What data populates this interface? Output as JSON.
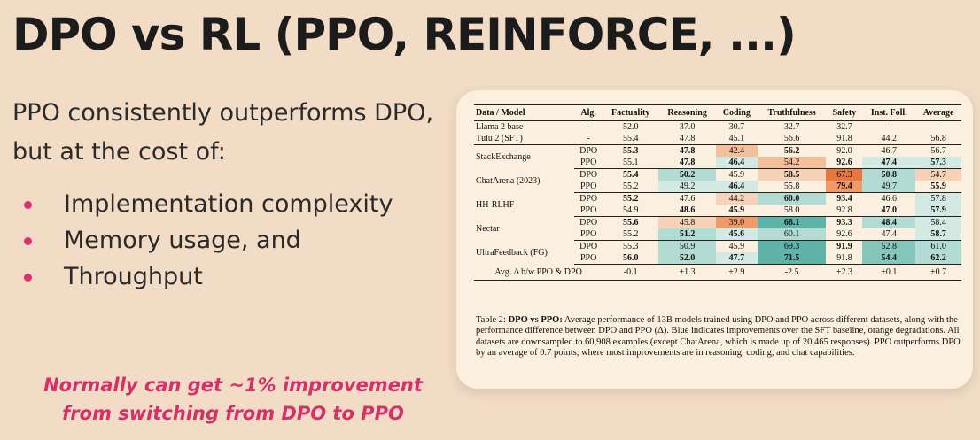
{
  "slide": {
    "title": "DPO vs RL (PPO, REINFORCE, ...)",
    "subtitle": "PPO consistently outperforms DPO, but at the cost of:",
    "bullets": [
      "Implementation complexity",
      "Memory usage, and",
      "Throughput"
    ],
    "callout": "Normally can get ~1% improvement from switching from DPO to PPO",
    "colors": {
      "background": "#f3dcc5",
      "accent": "#d2316a",
      "card": "#fbf0df",
      "blue": "#5fb3a9",
      "orange": "#ee8a55"
    }
  },
  "table": {
    "headers": [
      "Data / Model",
      "Alg.",
      "Factuality",
      "Reasoning",
      "Coding",
      "Truthfulness",
      "Safety",
      "Inst. Foll.",
      "Average"
    ],
    "baselines": [
      {
        "model": "Llama 2 base",
        "alg": "-",
        "values": [
          "52.0",
          "37.0",
          "30.7",
          "32.7",
          "32.7",
          "-",
          "-"
        ]
      },
      {
        "model": "Tülu 2 (SFT)",
        "alg": "-",
        "values": [
          "55.4",
          "47.8",
          "45.1",
          "56.6",
          "91.8",
          "44.2",
          "56.8"
        ]
      }
    ],
    "groups": [
      {
        "model": "StackExchange",
        "rows": [
          {
            "alg": "DPO",
            "values": [
              "55.3",
              "47.8",
              "42.4",
              "56.2",
              "92.0",
              "46.7",
              "56.7"
            ],
            "bold": [
              true,
              true,
              false,
              true,
              false,
              false,
              false
            ],
            "shade": [
              "",
              "",
              "o2",
              "",
              "",
              "",
              ""
            ]
          },
          {
            "alg": "PPO",
            "values": [
              "55.1",
              "47.8",
              "46.4",
              "54.2",
              "92.6",
              "47.4",
              "57.3"
            ],
            "bold": [
              false,
              true,
              true,
              false,
              true,
              true,
              true
            ],
            "shade": [
              "",
              "",
              "b1",
              "o2",
              "",
              "b1",
              "b1"
            ]
          }
        ]
      },
      {
        "model": "ChatArena (2023)",
        "rows": [
          {
            "alg": "DPO",
            "values": [
              "55.4",
              "50.2",
              "45.9",
              "58.5",
              "67.3",
              "50.8",
              "54.7"
            ],
            "bold": [
              true,
              true,
              false,
              true,
              false,
              true,
              false
            ],
            "shade": [
              "",
              "b2",
              "",
              "o1",
              "o4",
              "b2",
              "o1"
            ]
          },
          {
            "alg": "PPO",
            "values": [
              "55.2",
              "49.2",
              "46.4",
              "55.8",
              "79.4",
              "49.7",
              "55.9"
            ],
            "bold": [
              false,
              false,
              true,
              false,
              true,
              false,
              true
            ],
            "shade": [
              "",
              "b1",
              "b1",
              "",
              "o3",
              "b2",
              ""
            ]
          }
        ]
      },
      {
        "model": "HH-RLHF",
        "rows": [
          {
            "alg": "DPO",
            "values": [
              "55.2",
              "47.6",
              "44.2",
              "60.0",
              "93.4",
              "46.6",
              "57.8"
            ],
            "bold": [
              true,
              false,
              false,
              true,
              true,
              false,
              false
            ],
            "shade": [
              "",
              "",
              "o1",
              "b2",
              "",
              "",
              "b1"
            ]
          },
          {
            "alg": "PPO",
            "values": [
              "54.9",
              "48.6",
              "45.9",
              "58.0",
              "92.8",
              "47.0",
              "57.9"
            ],
            "bold": [
              false,
              true,
              true,
              false,
              false,
              true,
              true
            ],
            "shade": [
              "",
              "",
              "",
              "",
              "",
              "",
              "b1"
            ]
          }
        ]
      },
      {
        "model": "Nectar",
        "rows": [
          {
            "alg": "DPO",
            "values": [
              "55.6",
              "45.8",
              "39.0",
              "68.1",
              "93.3",
              "48.4",
              "58.4"
            ],
            "bold": [
              true,
              false,
              false,
              true,
              true,
              true,
              false
            ],
            "shade": [
              "",
              "o1",
              "o3",
              "b4",
              "",
              "b2",
              "b1"
            ]
          },
          {
            "alg": "PPO",
            "values": [
              "55.2",
              "51.2",
              "45.6",
              "60.1",
              "92.6",
              "47.4",
              "58.7"
            ],
            "bold": [
              false,
              true,
              true,
              false,
              false,
              false,
              true
            ],
            "shade": [
              "",
              "b2",
              "b1",
              "b2",
              "",
              "",
              "b1"
            ]
          }
        ]
      },
      {
        "model": "UltraFeedback (FG)",
        "rows": [
          {
            "alg": "DPO",
            "values": [
              "55.3",
              "50.9",
              "45.9",
              "69.3",
              "91.9",
              "52.8",
              "61.0"
            ],
            "bold": [
              false,
              false,
              false,
              false,
              true,
              false,
              false
            ],
            "shade": [
              "",
              "b2",
              "",
              "b4",
              "",
              "b3",
              "b2"
            ]
          },
          {
            "alg": "PPO",
            "values": [
              "56.0",
              "52.0",
              "47.7",
              "71.5",
              "91.8",
              "54.4",
              "62.2"
            ],
            "bold": [
              true,
              true,
              true,
              true,
              false,
              true,
              true
            ],
            "shade": [
              "",
              "b2",
              "b1",
              "b4",
              "",
              "b3",
              "b2"
            ]
          }
        ]
      }
    ],
    "avg_row": {
      "label": "Avg. Δ b/w PPO & DPO",
      "values": [
        "-0.1",
        "+1.3",
        "+2.9",
        "-2.5",
        "+2.3",
        "+0.1",
        "+0.7"
      ]
    },
    "caption_label": "Table 2:",
    "caption_bold": "DPO vs PPO:",
    "caption_text": "Average performance of 13B models trained using DPO and PPO across different datasets, along with the performance difference between DPO and PPO (Δ). Blue indicates improvements over the SFT baseline, orange degradations. All datasets are downsampled to 60,908 examples (except ChatArena, which is made up of 20,465 responses). PPO outperforms DPO by an average of 0.7 points, where most improvements are in reasoning, coding, and chat capabilities."
  }
}
